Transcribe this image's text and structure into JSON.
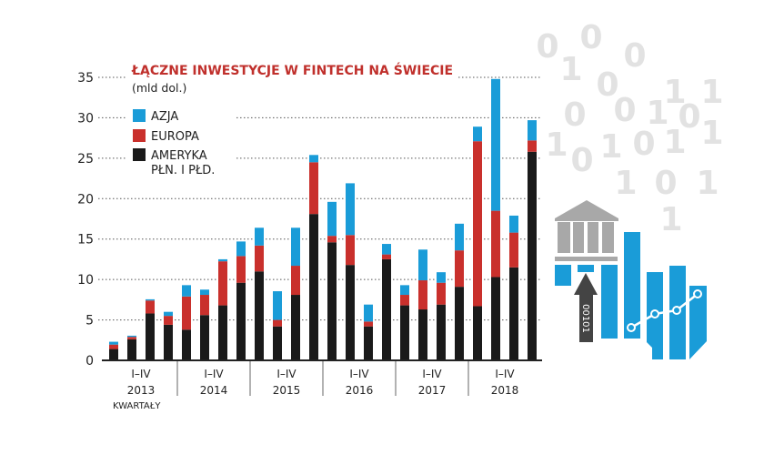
{
  "chart_data": {
    "type": "bar",
    "stacked": true,
    "title": "ŁĄCZNE INWESTYCJE W FINTECH NA ŚWIECIE",
    "subtitle": "(mld dol.)",
    "xlabel": "KWARTAŁY",
    "ylim": [
      0,
      35
    ],
    "yticks": [
      "0",
      "5",
      "10",
      "15",
      "20",
      "25",
      "30",
      "35"
    ],
    "grid": true,
    "legend_position": "top-left",
    "groups": [
      {
        "quarters": "I–IV",
        "year": "2013"
      },
      {
        "quarters": "I–IV",
        "year": "2014"
      },
      {
        "quarters": "I–IV",
        "year": "2015"
      },
      {
        "quarters": "I–IV",
        "year": "2016"
      },
      {
        "quarters": "I–IV",
        "year": "2017"
      },
      {
        "quarters": "I–IV",
        "year": "2018"
      }
    ],
    "categories": [
      "2013 Q1",
      "2013 Q2",
      "2013 Q3",
      "2013 Q4",
      "2014 Q1",
      "2014 Q2",
      "2014 Q3",
      "2014 Q4",
      "2015 Q1",
      "2015 Q2",
      "2015 Q3",
      "2015 Q4",
      "2016 Q1",
      "2016 Q2",
      "2016 Q3",
      "2016 Q4",
      "2017 Q1",
      "2017 Q2",
      "2017 Q3",
      "2017 Q4",
      "2018 Q1",
      "2018 Q2",
      "2018 Q3",
      "2018 Q4"
    ],
    "series": [
      {
        "name": "AMERYKA PŁN. I PŁD.",
        "color": "#1a1a1a",
        "values": [
          1.4,
          2.6,
          5.8,
          4.4,
          3.8,
          5.6,
          6.8,
          9.6,
          11.0,
          4.2,
          8.1,
          18.1,
          14.6,
          11.8,
          4.2,
          12.5,
          6.8,
          6.3,
          6.9,
          9.1,
          6.7,
          10.3,
          11.5,
          25.8
        ]
      },
      {
        "name": "EUROPA",
        "color": "#c9302c",
        "values": [
          0.55,
          0.3,
          1.6,
          1.1,
          4.1,
          2.5,
          5.45,
          3.3,
          3.2,
          0.8,
          3.6,
          6.4,
          0.8,
          3.7,
          0.6,
          0.6,
          1.3,
          3.6,
          2.7,
          4.5,
          20.4,
          8.2,
          4.3,
          1.4
        ]
      },
      {
        "name": "AZJA",
        "color": "#1a9cd8",
        "values": [
          0.35,
          0.15,
          0.15,
          0.5,
          1.4,
          0.65,
          0.25,
          1.8,
          2.2,
          3.55,
          4.7,
          0.9,
          4.2,
          6.4,
          2.1,
          1.3,
          1.2,
          3.8,
          1.3,
          3.3,
          1.8,
          16.3,
          2.1,
          2.5
        ]
      }
    ]
  },
  "legend": [
    "AZJA",
    "EUROPA",
    "AMERYKA",
    "PŁN. I PŁD."
  ],
  "illustration": {
    "digits": [
      "0",
      "0",
      "1",
      "0",
      "0",
      "1",
      "1",
      "0",
      "0",
      "1",
      "0",
      "1",
      "0",
      "1",
      "0",
      "1",
      "1",
      "1",
      "0",
      "1",
      "1"
    ],
    "arrow_text": "00101",
    "accent": "#1a9cd8",
    "gray": "#a8a8a8"
  }
}
